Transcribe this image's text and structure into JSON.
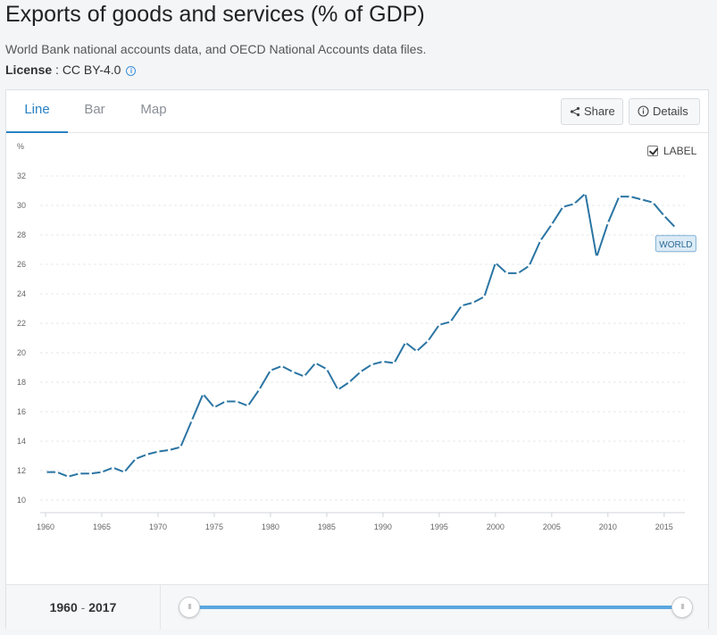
{
  "header": {
    "title": "Exports of goods and services (% of GDP)",
    "subtitle": "World Bank national accounts data, and OECD National Accounts data files.",
    "license_label": "License",
    "license_sep": " : ",
    "license_value": "CC BY-4.0",
    "info_glyph": "i"
  },
  "tabs": [
    {
      "label": "Line"
    },
    {
      "label": "Bar"
    },
    {
      "label": "Map"
    }
  ],
  "buttons": {
    "share": "Share",
    "details": "Details"
  },
  "label_toggle": {
    "label": "LABEL",
    "checked": true
  },
  "footer": {
    "range_start": "1960",
    "range_sep": " - ",
    "range_end": "2017",
    "handle_glyph": "III"
  },
  "colors": {
    "series": "#2b75a3",
    "accent": "#2a82c4",
    "slider": "#5aa8e0"
  },
  "chart_data": {
    "type": "line",
    "title": "Exports of goods and services (% of GDP)",
    "ylabel": "%",
    "xlabel": "",
    "ylim": [
      10,
      32
    ],
    "xlim": [
      1960,
      2017
    ],
    "yticks": [
      10,
      12,
      14,
      16,
      18,
      20,
      22,
      24,
      26,
      28,
      30,
      32
    ],
    "xticks": [
      1960,
      1965,
      1970,
      1975,
      1980,
      1985,
      1990,
      1995,
      2000,
      2005,
      2010,
      2015
    ],
    "grid": true,
    "series": [
      {
        "name": "WORLD",
        "x": [
          1960,
          1961,
          1962,
          1963,
          1964,
          1965,
          1966,
          1967,
          1968,
          1969,
          1970,
          1971,
          1972,
          1973,
          1974,
          1975,
          1976,
          1977,
          1978,
          1979,
          1980,
          1981,
          1982,
          1983,
          1984,
          1985,
          1986,
          1987,
          1988,
          1989,
          1990,
          1991,
          1992,
          1993,
          1994,
          1995,
          1996,
          1997,
          1998,
          1999,
          2000,
          2001,
          2002,
          2003,
          2004,
          2005,
          2006,
          2007,
          2008,
          2009,
          2010,
          2011,
          2012,
          2013,
          2014,
          2015,
          2016
        ],
        "values": [
          11.9,
          11.9,
          11.6,
          11.8,
          11.8,
          11.9,
          12.2,
          11.9,
          12.8,
          13.1,
          13.3,
          13.4,
          13.6,
          15.4,
          17.2,
          16.3,
          16.7,
          16.7,
          16.4,
          17.5,
          18.8,
          19.1,
          18.7,
          18.4,
          19.3,
          18.9,
          17.5,
          18.0,
          18.7,
          19.2,
          19.4,
          19.3,
          20.7,
          20.1,
          20.8,
          21.9,
          22.1,
          23.2,
          23.4,
          23.8,
          26.1,
          25.4,
          25.4,
          25.9,
          27.6,
          28.7,
          29.9,
          30.1,
          30.8,
          26.5,
          28.8,
          30.6,
          30.6,
          30.4,
          30.2,
          29.3,
          28.5
        ]
      }
    ]
  }
}
